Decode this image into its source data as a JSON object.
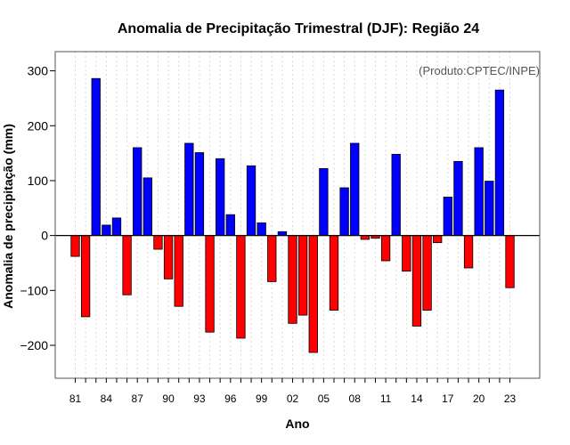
{
  "chart_data": {
    "type": "bar",
    "title": "Anomalia de Precipitação Trimestral (DJF): Região 24",
    "xlabel": "Ano",
    "ylabel": "Anomalia de precipitação (mm)",
    "annotation": "(Produto:CPTEC/INPE)",
    "ylim": [
      -260,
      335
    ],
    "yticks": [
      -200,
      -100,
      0,
      100,
      200,
      300
    ],
    "start_year": 1981,
    "x_tick_labels": [
      "81",
      "84",
      "87",
      "90",
      "93",
      "96",
      "99",
      "02",
      "05",
      "08",
      "11",
      "14",
      "17",
      "20",
      "23"
    ],
    "categories": [
      "1981",
      "1982",
      "1983",
      "1984",
      "1985",
      "1986",
      "1987",
      "1988",
      "1989",
      "1990",
      "1991",
      "1992",
      "1993",
      "1994",
      "1995",
      "1996",
      "1997",
      "1998",
      "1999",
      "2000",
      "2001",
      "2002",
      "2003",
      "2004",
      "2005",
      "2006",
      "2007",
      "2008",
      "2009",
      "2010",
      "2011",
      "2012",
      "2013",
      "2014",
      "2015",
      "2016",
      "2017",
      "2018",
      "2019",
      "2020",
      "2021",
      "2022",
      "2023"
    ],
    "values": [
      -38,
      -148,
      286,
      19,
      32,
      -108,
      160,
      105,
      -25,
      -79,
      -129,
      168,
      151,
      -176,
      140,
      38,
      -187,
      127,
      23,
      -84,
      7,
      -160,
      -145,
      -213,
      122,
      -136,
      87,
      168,
      -7,
      -5,
      -46,
      148,
      -65,
      -165,
      -136,
      -13,
      70,
      135,
      -59,
      160,
      99,
      265,
      -95
    ],
    "positive_color": "#0000ff",
    "negative_color": "#ff0000",
    "grid": true
  }
}
